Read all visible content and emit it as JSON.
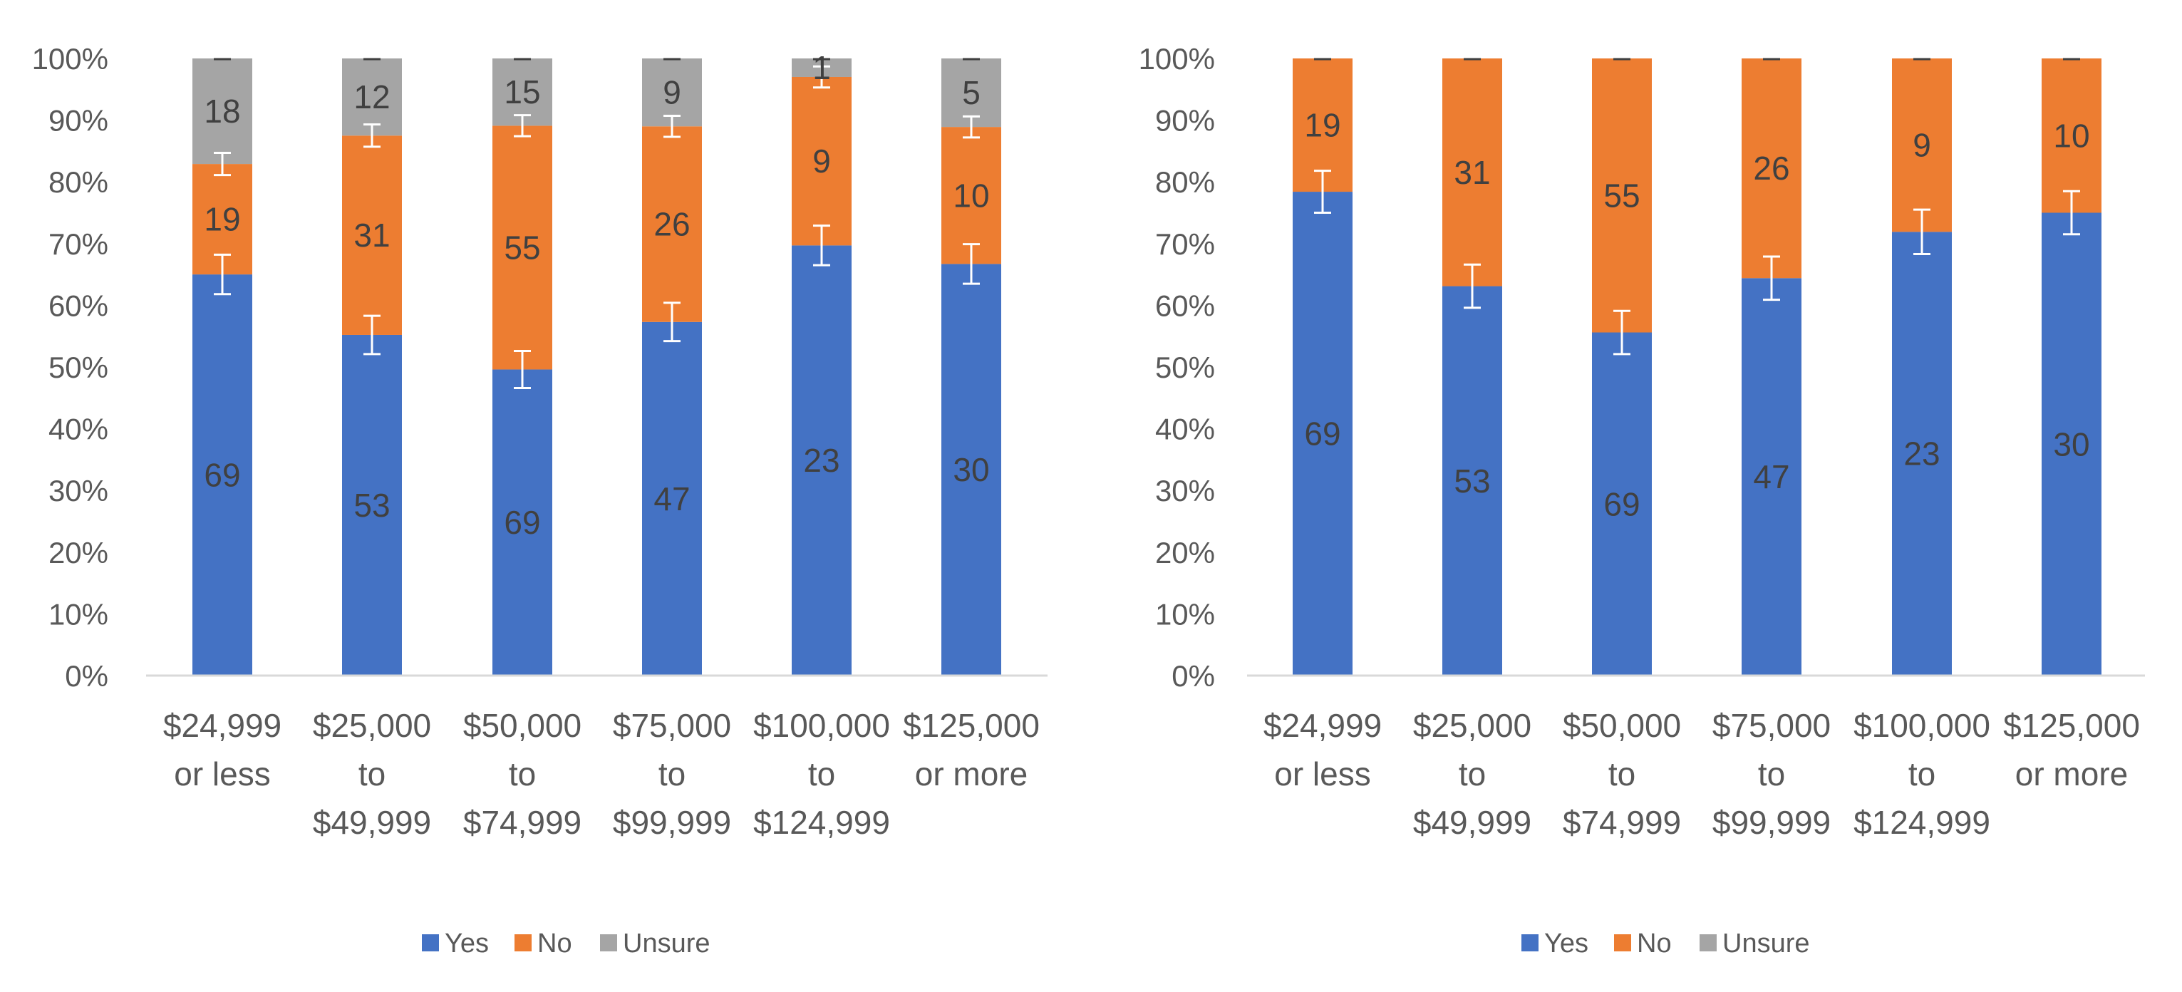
{
  "colors": {
    "yes": "#4472C4",
    "no": "#ED7D31",
    "unsure": "#A5A5A5",
    "axis": "#D9D9D9",
    "text": "#595959",
    "label": "#404040",
    "errorbar": "#FFFFFF"
  },
  "chart_data": [
    {
      "type": "bar",
      "stacked": "percent",
      "title": "",
      "xlabel": "",
      "ylabel": "",
      "ylim": [
        0,
        100
      ],
      "yticks": [
        "0%",
        "10%",
        "20%",
        "30%",
        "40%",
        "50%",
        "60%",
        "70%",
        "80%",
        "90%",
        "100%"
      ],
      "categories": [
        [
          "$24,999",
          "or less"
        ],
        [
          "$25,000",
          "to",
          "$49,999"
        ],
        [
          "$50,000",
          "to",
          "$74,999"
        ],
        [
          "$75,000",
          "to",
          "$99,999"
        ],
        [
          "$100,000",
          "to",
          "$124,999"
        ],
        [
          "$125,000",
          "or more"
        ]
      ],
      "series": [
        {
          "name": "Yes",
          "key": "yes",
          "values": [
            69,
            53,
            69,
            47,
            23,
            30
          ],
          "percent": [
            65.0,
            55.2,
            49.6,
            57.3,
            69.7,
            66.7
          ],
          "error": [
            3.2,
            3.1,
            3.0,
            3.1,
            3.2,
            3.2
          ]
        },
        {
          "name": "No",
          "key": "no",
          "values": [
            19,
            31,
            55,
            26,
            9,
            10
          ],
          "percent": [
            17.9,
            32.3,
            39.5,
            31.7,
            27.3,
            22.2
          ],
          "error": [
            1.8,
            1.8,
            1.7,
            1.7,
            1.7,
            1.7
          ]
        },
        {
          "name": "Unsure",
          "key": "unsure",
          "values": [
            18,
            12,
            15,
            9,
            1,
            5
          ],
          "percent": [
            17.1,
            12.5,
            10.9,
            11.0,
            3.0,
            11.1
          ],
          "error": [
            0,
            0,
            0,
            0,
            0,
            0
          ]
        }
      ],
      "legend": [
        "Yes",
        "No",
        "Unsure"
      ],
      "legend_position": "bottom"
    },
    {
      "type": "bar",
      "stacked": "percent",
      "title": "",
      "xlabel": "",
      "ylabel": "",
      "ylim": [
        0,
        100
      ],
      "yticks": [
        "0%",
        "10%",
        "20%",
        "30%",
        "40%",
        "50%",
        "60%",
        "70%",
        "80%",
        "90%",
        "100%"
      ],
      "categories": [
        [
          "$24,999",
          "or less"
        ],
        [
          "$25,000",
          "to",
          "$49,999"
        ],
        [
          "$50,000",
          "to",
          "$74,999"
        ],
        [
          "$75,000",
          "to",
          "$99,999"
        ],
        [
          "$100,000",
          "to",
          "$124,999"
        ],
        [
          "$125,000",
          "or more"
        ]
      ],
      "series": [
        {
          "name": "Yes",
          "key": "yes",
          "values": [
            69,
            53,
            69,
            47,
            23,
            30
          ],
          "percent": [
            78.4,
            63.1,
            55.6,
            64.4,
            71.9,
            75.0
          ],
          "error": [
            3.4,
            3.5,
            3.5,
            3.5,
            3.6,
            3.5
          ]
        },
        {
          "name": "No",
          "key": "no",
          "values": [
            19,
            31,
            55,
            26,
            9,
            10
          ],
          "percent": [
            21.6,
            36.9,
            44.4,
            35.6,
            28.1,
            25.0
          ],
          "error": [
            0,
            0,
            0,
            0,
            0,
            0
          ]
        },
        {
          "name": "Unsure",
          "key": "unsure",
          "values": [
            0,
            0,
            0,
            0,
            0,
            0
          ],
          "percent": [
            0,
            0,
            0,
            0,
            0,
            0
          ],
          "error": [
            0,
            0,
            0,
            0,
            0,
            0
          ]
        }
      ],
      "legend": [
        "Yes",
        "No",
        "Unsure"
      ],
      "legend_position": "bottom"
    }
  ]
}
